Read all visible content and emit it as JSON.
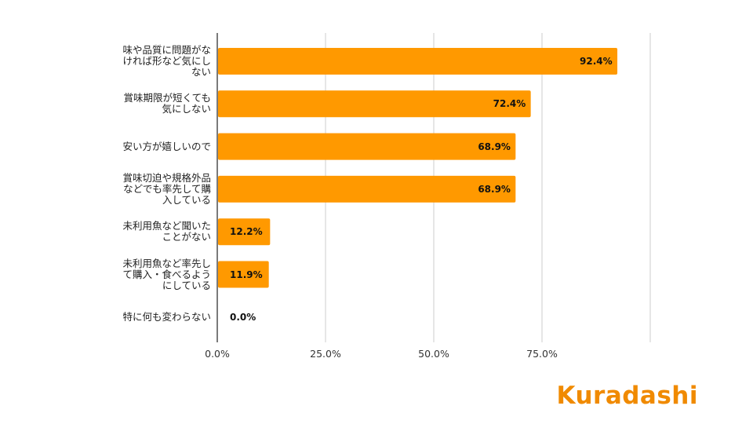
{
  "chart_data": {
    "type": "bar",
    "orientation": "horizontal",
    "categories": [
      "味や品質に問題がなければ形など気にしない",
      "賞味期限が短くても気にしない",
      "安い方が嬉しいので",
      "賞味切迫や規格外品などでも率先して購入している",
      "未利用魚など聞いたことがない",
      "未利用魚など率先して購入・食べるようにしている",
      "特に何も変わらない"
    ],
    "category_lines": [
      [
        "味や品質に問題がな",
        "ければ形など気にし",
        "ない"
      ],
      [
        "賞味期限が短くても",
        "気にしない"
      ],
      [
        "安い方が嬉しいので"
      ],
      [
        "賞味切迫や規格外品",
        "などでも率先して購",
        "入している"
      ],
      [
        "未利用魚など聞いた",
        "ことがない"
      ],
      [
        "未利用魚など率先し",
        "て購入・食べるよう",
        "にしている"
      ],
      [
        "特に何も変わらない"
      ]
    ],
    "values": [
      92.4,
      72.4,
      68.9,
      68.9,
      12.2,
      11.9,
      0.0
    ],
    "data_labels": [
      "92.4%",
      "72.4%",
      "68.9%",
      "68.9%",
      "12.2%",
      "11.9%",
      "0.0%"
    ],
    "x_ticks": [
      0,
      25,
      50,
      75
    ],
    "x_tick_labels": [
      "0.0%",
      "25.0%",
      "50.0%",
      "75.0%"
    ],
    "xlim": [
      0,
      100
    ],
    "grid": true,
    "bar_color": "#ff9900",
    "title": "",
    "xlabel": "",
    "ylabel": ""
  },
  "brand": {
    "logo_text": "Kuradashi",
    "logo_color": "#f08a00"
  }
}
